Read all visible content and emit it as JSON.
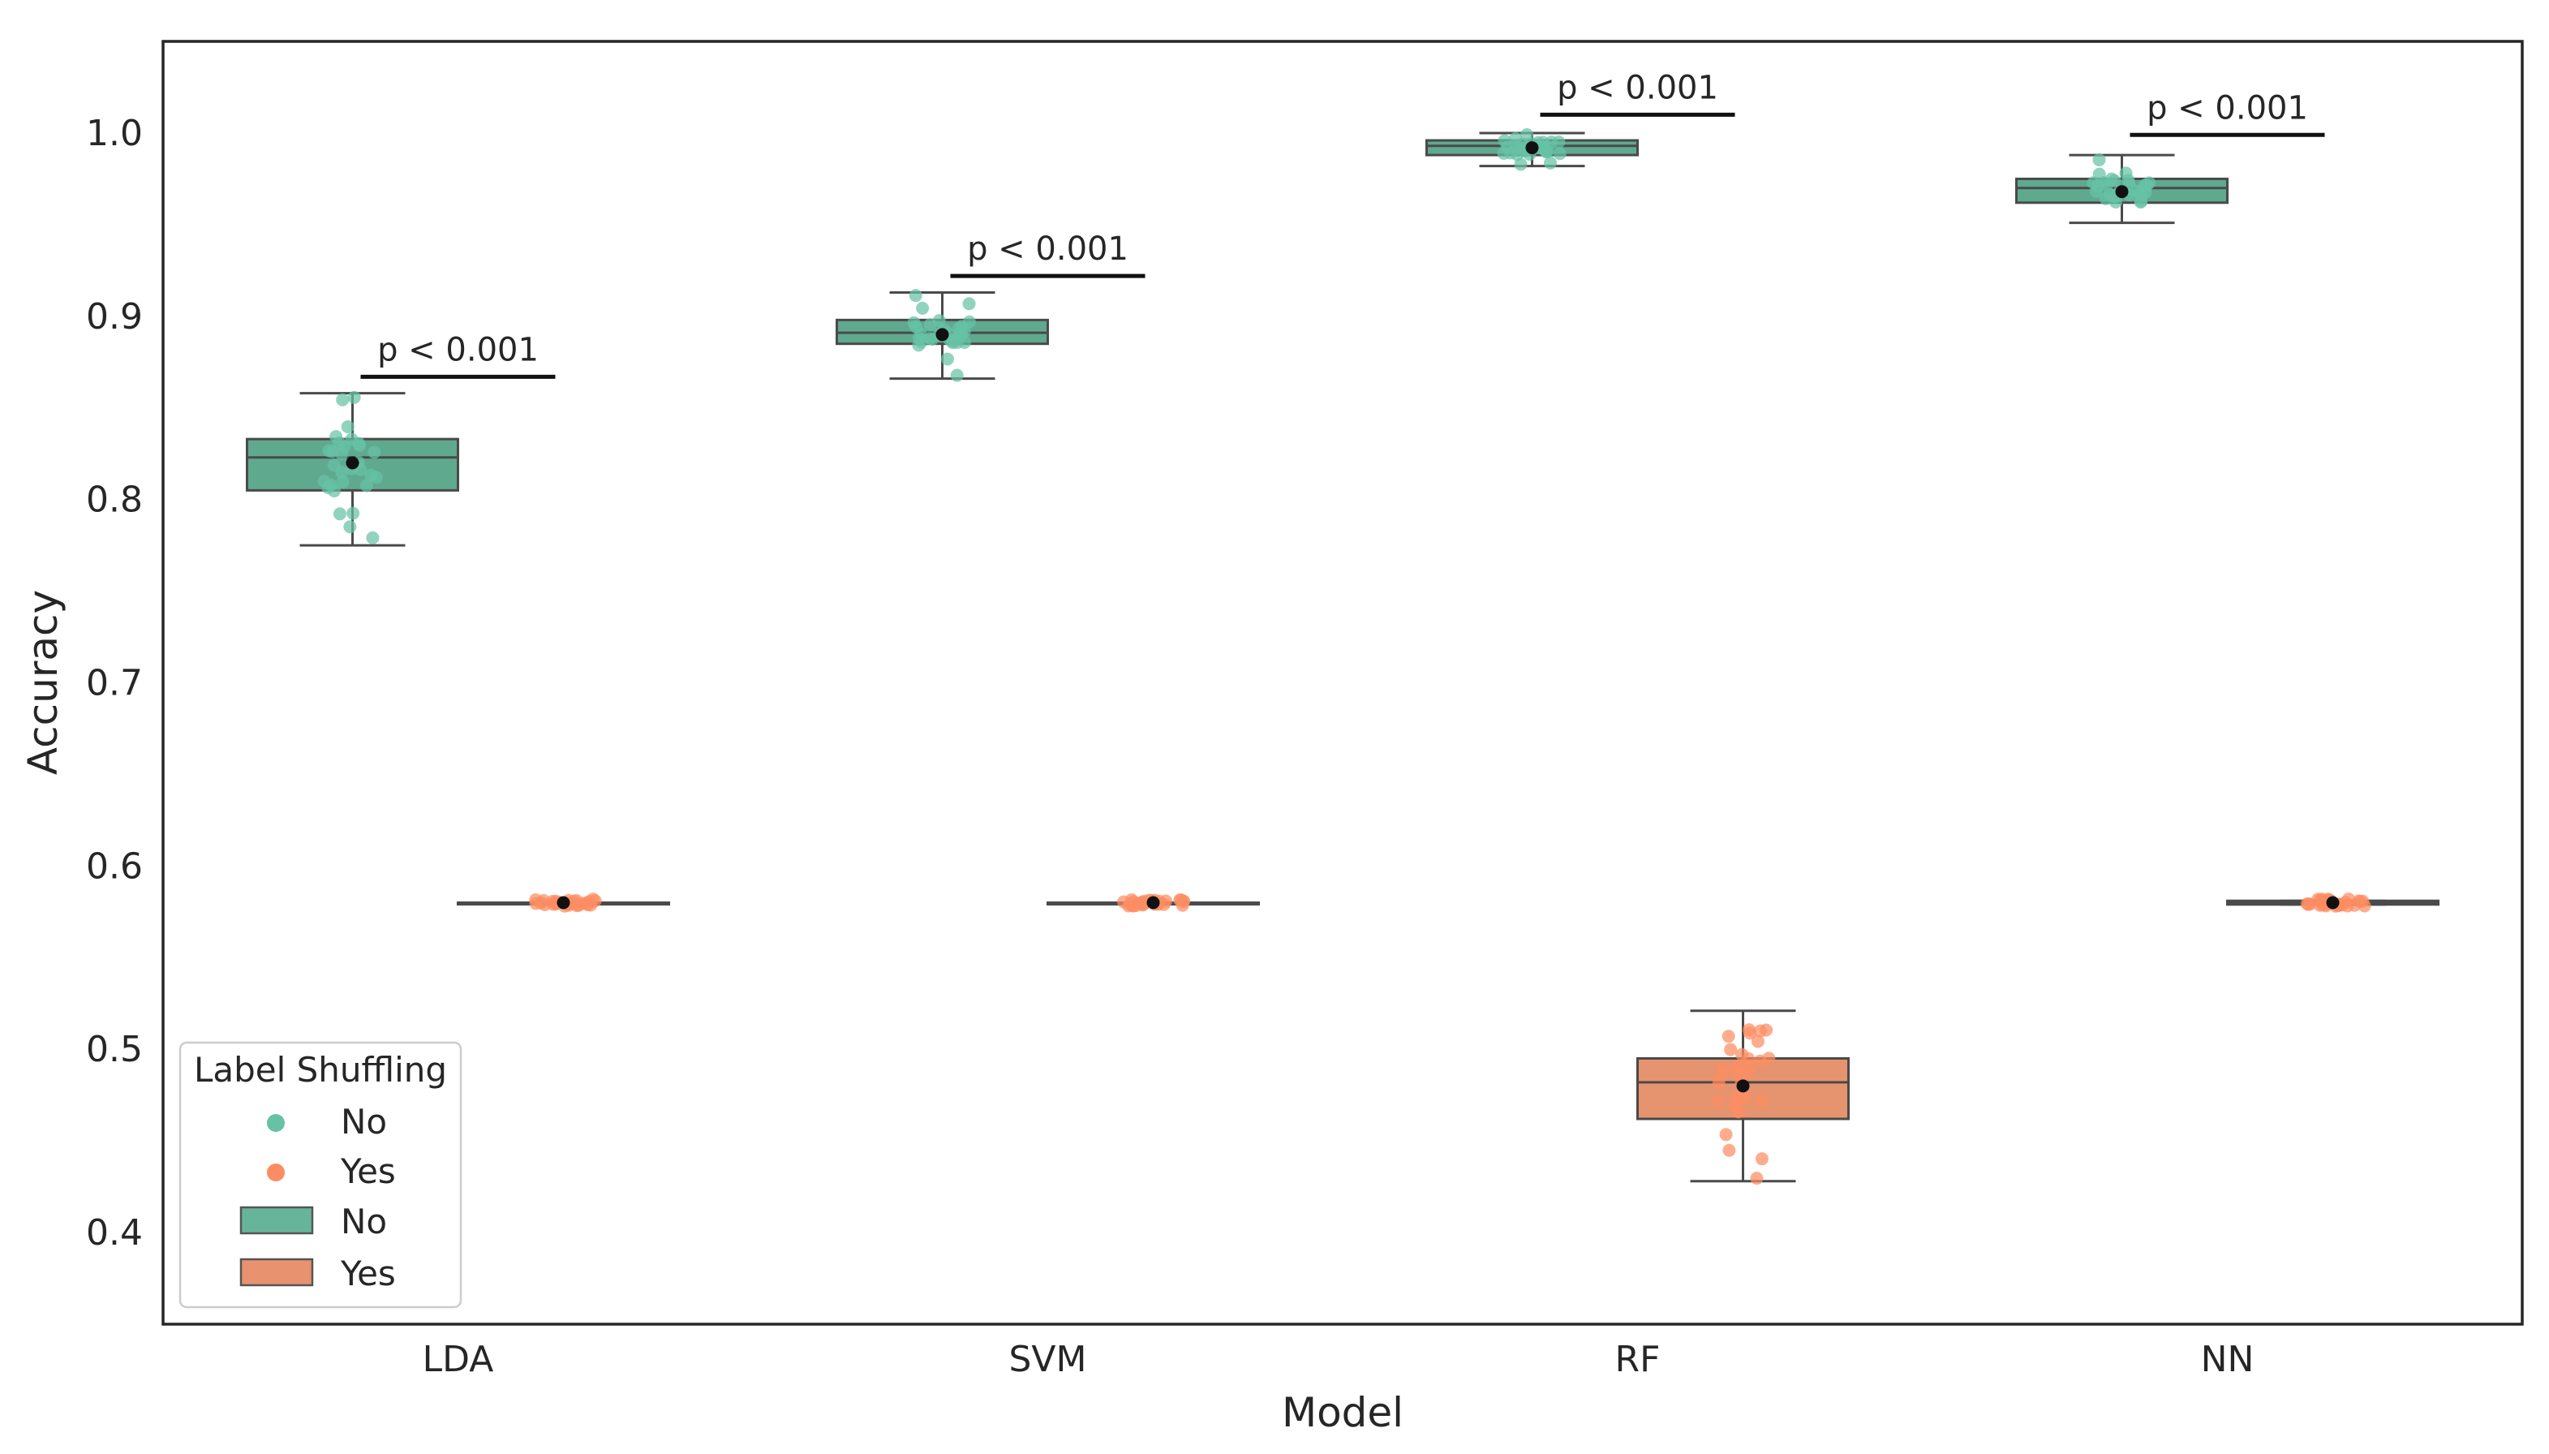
{
  "chart_data": {
    "type": "boxplot",
    "title": "",
    "xlabel": "Model",
    "ylabel": "Accuracy",
    "ylim": [
      0.35,
      1.05
    ],
    "yticks": [
      "0.4",
      "0.5",
      "0.6",
      "0.7",
      "0.8",
      "0.9",
      "1.0"
    ],
    "categories": [
      "LDA",
      "SVM",
      "RF",
      "NN"
    ],
    "grid": false,
    "hue_title": "Label Shuffling",
    "series": [
      {
        "name": "No",
        "color": "#66c2a5",
        "box_color": "#5fa98f",
        "boxes": [
          {
            "whislo": 0.775,
            "q1": 0.805,
            "med": 0.823,
            "q3": 0.833,
            "whishi": 0.858,
            "mean": 0.82
          },
          {
            "whislo": 0.866,
            "q1": 0.885,
            "med": 0.891,
            "q3": 0.898,
            "whishi": 0.913,
            "mean": 0.89
          },
          {
            "whislo": 0.982,
            "q1": 0.988,
            "med": 0.993,
            "q3": 0.996,
            "whishi": 1.0,
            "mean": 0.992
          },
          {
            "whislo": 0.951,
            "q1": 0.962,
            "med": 0.97,
            "q3": 0.975,
            "whishi": 0.988,
            "mean": 0.968
          }
        ]
      },
      {
        "name": "Yes",
        "color": "#fc8d62",
        "box_color": "#e6946f",
        "boxes": [
          {
            "whislo": 0.58,
            "q1": 0.58,
            "med": 0.58,
            "q3": 0.58,
            "whishi": 0.58,
            "mean": 0.58
          },
          {
            "whislo": 0.58,
            "q1": 0.58,
            "med": 0.58,
            "q3": 0.58,
            "whishi": 0.58,
            "mean": 0.58
          },
          {
            "whislo": 0.428,
            "q1": 0.462,
            "med": 0.482,
            "q3": 0.495,
            "whishi": 0.521,
            "mean": 0.48
          },
          {
            "whislo": 0.579,
            "q1": 0.579,
            "med": 0.58,
            "q3": 0.581,
            "whishi": 0.581,
            "mean": 0.58
          }
        ]
      }
    ],
    "annotations": [
      {
        "category": "LDA",
        "text": "p < 0.001",
        "y": 0.867
      },
      {
        "category": "SVM",
        "text": "p < 0.001",
        "y": 0.922
      },
      {
        "category": "RF",
        "text": "p < 0.001",
        "y": 1.01
      },
      {
        "category": "NN",
        "text": "p < 0.001",
        "y": 0.999
      }
    ],
    "legend": {
      "position": "lower-left",
      "title": "Label Shuffling",
      "entries": [
        {
          "label": "No",
          "marker": "point",
          "color": "#66c2a5"
        },
        {
          "label": "Yes",
          "marker": "point",
          "color": "#fc8d62"
        },
        {
          "label": "No",
          "marker": "patch",
          "color": "#66b59a"
        },
        {
          "label": "Yes",
          "marker": "patch",
          "color": "#e8926f"
        }
      ]
    }
  }
}
